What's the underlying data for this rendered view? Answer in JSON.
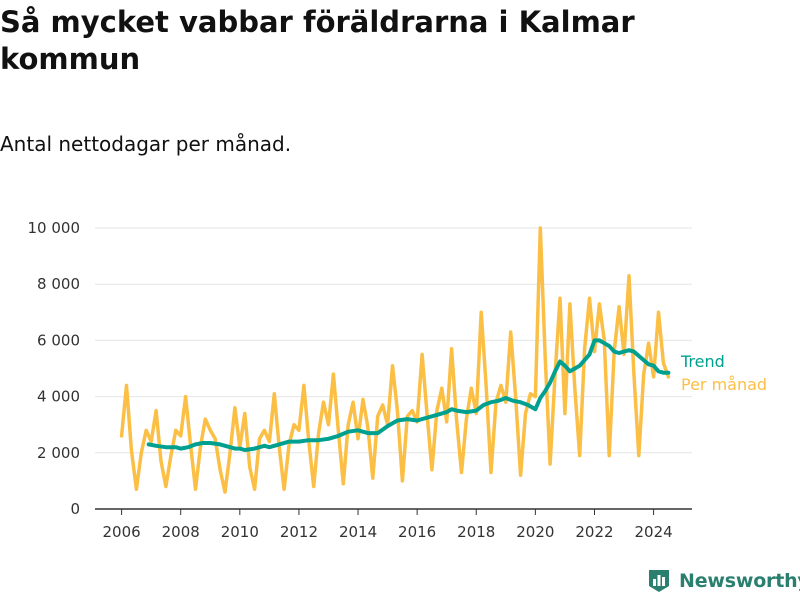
{
  "title": "Så mycket vabbar föräldrarna i Kalmar kommun",
  "subtitle": "Antal nettodagar per månad.",
  "brand": {
    "name": "Newsworthy",
    "color": "#2a7f6f",
    "icon": "bar-chart-logo-icon"
  },
  "colors": {
    "monthly": "#fbbf45",
    "trend": "#00a090",
    "axis": "#333333",
    "grid": "#e6e6e6"
  },
  "chart_data": {
    "type": "line",
    "title": "Så mycket vabbar föräldrarna i Kalmar kommun",
    "subtitle": "Antal nettodagar per månad.",
    "xlabel": "",
    "ylabel": "",
    "xlim": [
      2005.1,
      2025.3
    ],
    "ylim": [
      0,
      10000
    ],
    "x_ticks": [
      2006,
      2008,
      2010,
      2012,
      2014,
      2016,
      2018,
      2020,
      2022,
      2024
    ],
    "y_ticks": [
      0,
      2000,
      4000,
      6000,
      8000,
      10000
    ],
    "x_tick_labels": [
      "2006",
      "2008",
      "2010",
      "2012",
      "2014",
      "2016",
      "2018",
      "2020",
      "2022",
      "2024"
    ],
    "y_tick_labels": [
      "0",
      "2 000",
      "4 000",
      "6 000",
      "8 000",
      "10 000"
    ],
    "grid": "horizontal",
    "legend": "direct labels at right end of lines",
    "series": [
      {
        "name": "Per månad",
        "color": "#fbbf45",
        "x": [
          2006.0,
          2006.167,
          2006.333,
          2006.5,
          2006.667,
          2006.833,
          2007.0,
          2007.167,
          2007.333,
          2007.5,
          2007.667,
          2007.833,
          2008.0,
          2008.167,
          2008.333,
          2008.5,
          2008.667,
          2008.833,
          2009.0,
          2009.167,
          2009.333,
          2009.5,
          2009.667,
          2009.833,
          2010.0,
          2010.167,
          2010.333,
          2010.5,
          2010.667,
          2010.833,
          2011.0,
          2011.167,
          2011.333,
          2011.5,
          2011.667,
          2011.833,
          2012.0,
          2012.167,
          2012.333,
          2012.5,
          2012.667,
          2012.833,
          2013.0,
          2013.167,
          2013.333,
          2013.5,
          2013.667,
          2013.833,
          2014.0,
          2014.167,
          2014.333,
          2014.5,
          2014.667,
          2014.833,
          2015.0,
          2015.167,
          2015.333,
          2015.5,
          2015.667,
          2015.833,
          2016.0,
          2016.167,
          2016.333,
          2016.5,
          2016.667,
          2016.833,
          2017.0,
          2017.167,
          2017.333,
          2017.5,
          2017.667,
          2017.833,
          2018.0,
          2018.167,
          2018.333,
          2018.5,
          2018.667,
          2018.833,
          2019.0,
          2019.167,
          2019.333,
          2019.5,
          2019.667,
          2019.833,
          2020.0,
          2020.167,
          2020.333,
          2020.5,
          2020.667,
          2020.833,
          2021.0,
          2021.167,
          2021.333,
          2021.5,
          2021.667,
          2021.833,
          2022.0,
          2022.167,
          2022.333,
          2022.5,
          2022.667,
          2022.833,
          2023.0,
          2023.167,
          2023.333,
          2023.5,
          2023.667,
          2023.833,
          2024.0,
          2024.167,
          2024.333,
          2024.5
        ],
        "values": [
          2600,
          4400,
          2100,
          700,
          2000,
          2800,
          2400,
          3500,
          1700,
          800,
          1900,
          2800,
          2600,
          4000,
          2300,
          700,
          2200,
          3200,
          2800,
          2500,
          1400,
          600,
          2000,
          3600,
          2200,
          3400,
          1500,
          700,
          2500,
          2800,
          2400,
          4100,
          2200,
          700,
          2300,
          3000,
          2800,
          4400,
          2400,
          800,
          2700,
          3800,
          3000,
          4800,
          2800,
          900,
          3000,
          3800,
          2500,
          3900,
          2900,
          1100,
          3300,
          3700,
          3000,
          5100,
          3500,
          1000,
          3300,
          3500,
          3100,
          5500,
          3400,
          1400,
          3500,
          4300,
          3100,
          5700,
          3200,
          1300,
          3200,
          4300,
          3400,
          7000,
          4400,
          1300,
          3800,
          4400,
          3800,
          6300,
          4000,
          1200,
          3400,
          4100,
          4000,
          10000,
          5400,
          1600,
          4800,
          7500,
          3400,
          7300,
          4300,
          1900,
          5700,
          7500,
          5600,
          7300,
          6000,
          1900,
          5600,
          7200,
          5500,
          8300,
          4800,
          1900,
          4800,
          5900,
          4700,
          7000,
          5200,
          4700
        ]
      },
      {
        "name": "Trend",
        "color": "#00a090",
        "x": [
          2006.917,
          2007.167,
          2007.5,
          2007.833,
          2008.0,
          2008.25,
          2008.5,
          2008.75,
          2009.0,
          2009.333,
          2009.667,
          2009.833,
          2010.0,
          2010.167,
          2010.5,
          2010.833,
          2011.0,
          2011.333,
          2011.667,
          2012.0,
          2012.333,
          2012.667,
          2013.0,
          2013.333,
          2013.667,
          2014.0,
          2014.333,
          2014.667,
          2015.0,
          2015.333,
          2015.667,
          2016.0,
          2016.333,
          2016.667,
          2017.0,
          2017.167,
          2017.333,
          2017.667,
          2018.0,
          2018.25,
          2018.5,
          2018.75,
          2019.0,
          2019.25,
          2019.5,
          2019.75,
          2020.0,
          2020.167,
          2020.333,
          2020.5,
          2020.667,
          2020.833,
          2021.0,
          2021.167,
          2021.333,
          2021.5,
          2021.667,
          2021.833,
          2022.0,
          2022.167,
          2022.333,
          2022.5,
          2022.667,
          2022.833,
          2023.0,
          2023.167,
          2023.333,
          2023.5,
          2023.667,
          2023.833,
          2024.0,
          2024.167,
          2024.333,
          2024.5
        ],
        "values": [
          2300,
          2250,
          2200,
          2200,
          2150,
          2200,
          2300,
          2350,
          2350,
          2300,
          2200,
          2150,
          2150,
          2100,
          2150,
          2250,
          2200,
          2300,
          2400,
          2400,
          2450,
          2450,
          2500,
          2600,
          2750,
          2800,
          2700,
          2700,
          2950,
          3150,
          3200,
          3150,
          3250,
          3350,
          3450,
          3550,
          3500,
          3450,
          3500,
          3700,
          3800,
          3850,
          3950,
          3850,
          3800,
          3700,
          3550,
          3950,
          4200,
          4500,
          4900,
          5250,
          5100,
          4900,
          5000,
          5100,
          5300,
          5500,
          6000,
          6000,
          5900,
          5800,
          5600,
          5550,
          5600,
          5650,
          5600,
          5450,
          5300,
          5150,
          5100,
          4900,
          4850,
          4850
        ]
      }
    ]
  }
}
